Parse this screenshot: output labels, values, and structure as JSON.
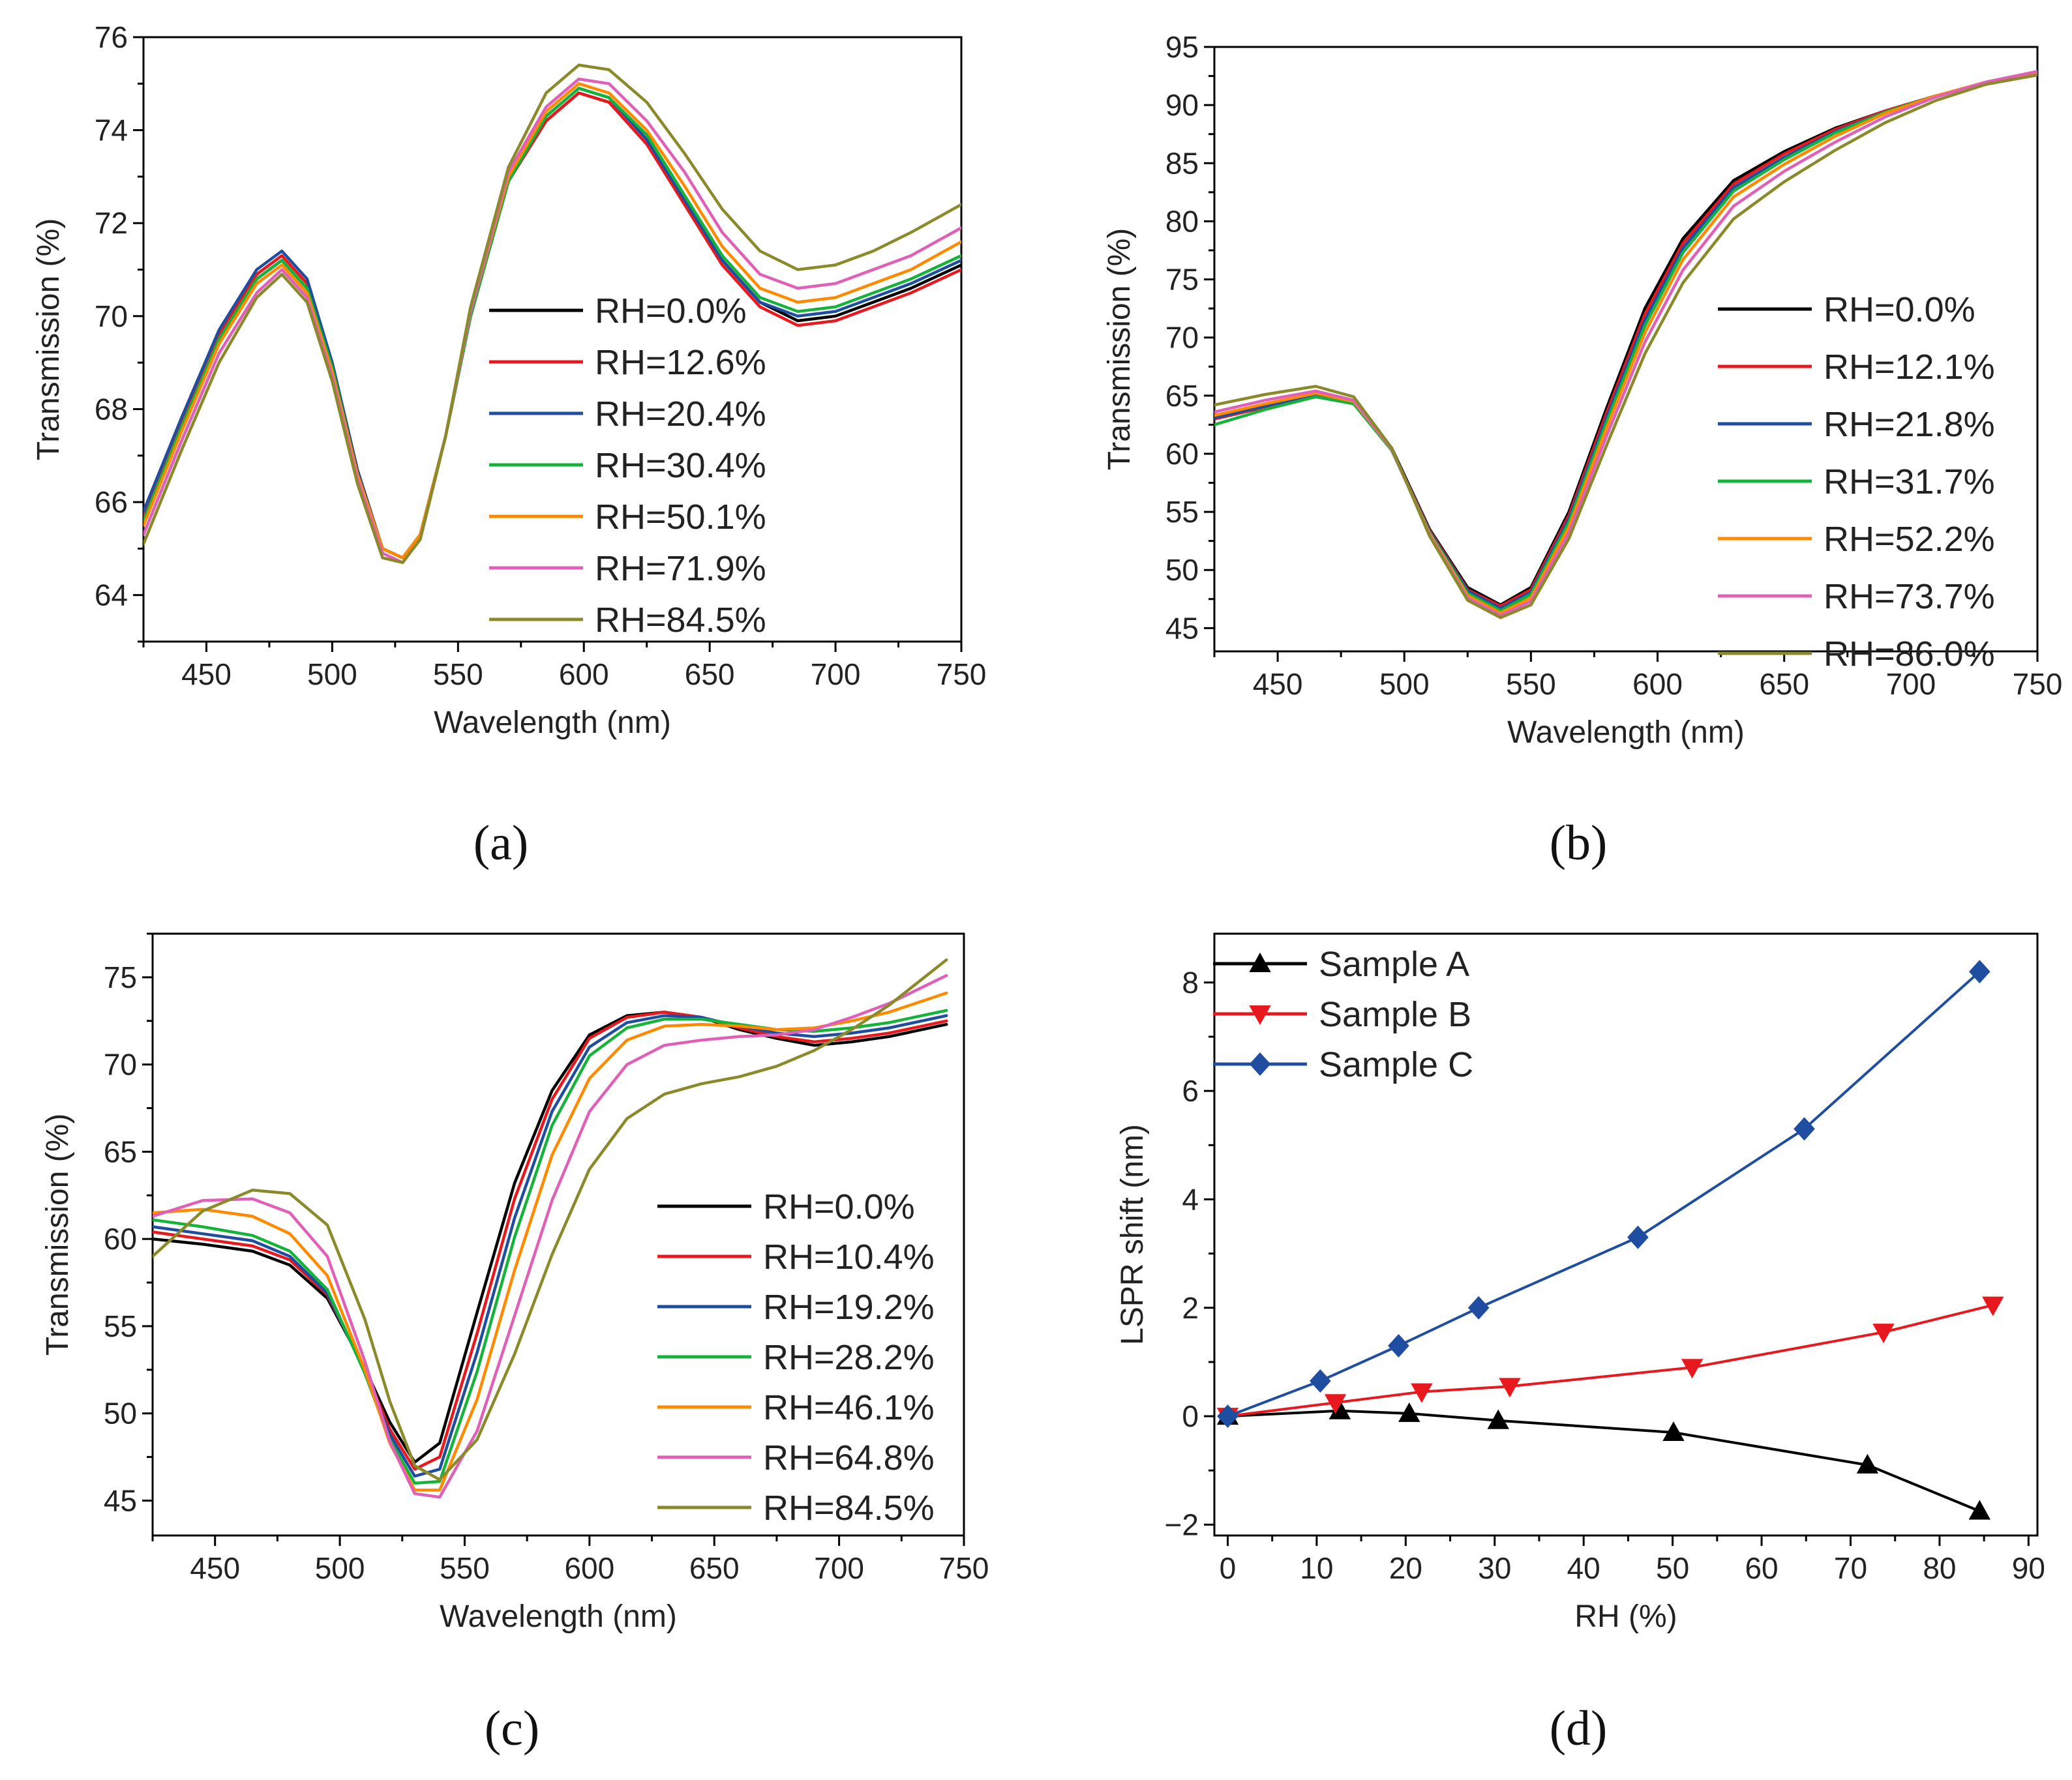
{
  "chart_data": [
    {
      "type": "line",
      "panel": "(a)",
      "xlabel": "Wavelength (nm)",
      "ylabel": "Transmission (%)",
      "xlim": [
        425,
        750
      ],
      "ylim": [
        63,
        76
      ],
      "xticks": [
        450,
        500,
        550,
        600,
        650,
        700,
        750
      ],
      "yticks": [
        64,
        66,
        68,
        70,
        72,
        74,
        76
      ],
      "legend_position": "center-right",
      "x": [
        425,
        440,
        455,
        470,
        480,
        490,
        500,
        510,
        520,
        528,
        535,
        545,
        555,
        570,
        585,
        598,
        610,
        625,
        640,
        655,
        670,
        685,
        700,
        715,
        730,
        750
      ],
      "series": [
        {
          "name": "RH=0.0%",
          "color": "#000000",
          "values": [
            65.6,
            67.6,
            69.5,
            70.8,
            71.2,
            70.6,
            68.9,
            66.6,
            65.0,
            64.8,
            65.3,
            67.4,
            70.0,
            72.9,
            74.2,
            74.8,
            74.6,
            73.7,
            72.5,
            71.2,
            70.3,
            69.9,
            70.0,
            70.3,
            70.6,
            71.1
          ]
        },
        {
          "name": "RH=12.6%",
          "color": "#e8191e",
          "values": [
            65.7,
            67.7,
            69.6,
            70.9,
            71.3,
            70.7,
            69.0,
            66.7,
            65.0,
            64.8,
            65.3,
            67.4,
            70.0,
            72.9,
            74.2,
            74.8,
            74.6,
            73.7,
            72.4,
            71.1,
            70.2,
            69.8,
            69.9,
            70.2,
            70.5,
            71.0
          ]
        },
        {
          "name": "RH=20.4%",
          "color": "#1f4ea1",
          "values": [
            65.8,
            67.8,
            69.7,
            71.0,
            71.4,
            70.8,
            69.0,
            66.7,
            65.0,
            64.8,
            65.3,
            67.4,
            70.0,
            72.9,
            74.3,
            74.9,
            74.7,
            73.8,
            72.5,
            71.2,
            70.3,
            70.0,
            70.1,
            70.4,
            70.7,
            71.2
          ]
        },
        {
          "name": "RH=30.4%",
          "color": "#16b33a",
          "values": [
            65.6,
            67.6,
            69.5,
            70.8,
            71.2,
            70.6,
            68.9,
            66.6,
            65.0,
            64.8,
            65.3,
            67.4,
            70.0,
            72.9,
            74.3,
            74.9,
            74.7,
            73.9,
            72.6,
            71.3,
            70.4,
            70.1,
            70.2,
            70.5,
            70.8,
            71.3
          ]
        },
        {
          "name": "RH=50.1%",
          "color": "#ff8a00",
          "values": [
            65.5,
            67.5,
            69.4,
            70.7,
            71.1,
            70.5,
            68.8,
            66.6,
            65.0,
            64.8,
            65.3,
            67.4,
            70.1,
            73.0,
            74.4,
            75.0,
            74.8,
            74.0,
            72.8,
            71.5,
            70.6,
            70.3,
            70.4,
            70.7,
            71.0,
            71.6
          ]
        },
        {
          "name": "RH=71.9%",
          "color": "#e060b8",
          "values": [
            65.3,
            67.3,
            69.2,
            70.5,
            71.0,
            70.4,
            68.7,
            66.5,
            64.9,
            64.7,
            65.2,
            67.4,
            70.1,
            73.1,
            74.5,
            75.1,
            75.0,
            74.2,
            73.1,
            71.8,
            70.9,
            70.6,
            70.7,
            71.0,
            71.3,
            71.9
          ]
        },
        {
          "name": "RH=84.5%",
          "color": "#8a8a2a",
          "values": [
            65.1,
            67.1,
            69.0,
            70.4,
            70.9,
            70.3,
            68.6,
            66.4,
            64.8,
            64.7,
            65.2,
            67.4,
            70.2,
            73.2,
            74.8,
            75.4,
            75.3,
            74.6,
            73.5,
            72.3,
            71.4,
            71.0,
            71.1,
            71.4,
            71.8,
            72.4
          ]
        }
      ]
    },
    {
      "type": "line",
      "panel": "(b)",
      "xlabel": "Wavelength (nm)",
      "ylabel": "Transmission (%)",
      "xlim": [
        425,
        750
      ],
      "ylim": [
        43,
        95
      ],
      "xticks": [
        450,
        500,
        550,
        600,
        650,
        700,
        750
      ],
      "yticks": [
        45,
        50,
        55,
        60,
        65,
        70,
        75,
        80,
        85,
        90,
        95
      ],
      "legend_position": "center-right",
      "x": [
        425,
        445,
        465,
        480,
        495,
        510,
        525,
        538,
        550,
        565,
        580,
        595,
        610,
        630,
        650,
        670,
        690,
        710,
        730,
        750
      ],
      "series": [
        {
          "name": "RH=0.0%",
          "color": "#000000",
          "values": [
            63.0,
            64.0,
            65.0,
            64.3,
            60.5,
            53.5,
            48.5,
            47.0,
            48.5,
            55.0,
            64.0,
            72.5,
            78.5,
            83.5,
            86.0,
            88.0,
            89.5,
            90.8,
            91.8,
            92.6
          ]
        },
        {
          "name": "RH=12.1%",
          "color": "#e8191e",
          "values": [
            63.0,
            64.0,
            65.0,
            64.3,
            60.4,
            53.4,
            48.3,
            46.9,
            48.3,
            54.7,
            63.6,
            72.0,
            78.1,
            83.2,
            85.8,
            87.9,
            89.5,
            90.8,
            91.8,
            92.6
          ]
        },
        {
          "name": "RH=21.8%",
          "color": "#1f4ea1",
          "values": [
            63.1,
            64.1,
            65.1,
            64.4,
            60.4,
            53.3,
            48.2,
            46.7,
            48.1,
            54.4,
            63.2,
            71.5,
            77.7,
            82.9,
            85.5,
            87.7,
            89.4,
            90.8,
            91.9,
            92.7
          ]
        },
        {
          "name": "RH=31.7%",
          "color": "#16b33a",
          "values": [
            62.5,
            63.8,
            64.9,
            64.3,
            60.3,
            53.2,
            48.0,
            46.5,
            47.9,
            54.1,
            62.8,
            71.0,
            77.3,
            82.6,
            85.3,
            87.6,
            89.4,
            90.8,
            91.9,
            92.7
          ]
        },
        {
          "name": "RH=52.2%",
          "color": "#ff8a00",
          "values": [
            63.3,
            64.3,
            65.2,
            64.5,
            60.4,
            53.1,
            47.8,
            46.3,
            47.6,
            53.7,
            62.3,
            70.4,
            76.7,
            82.1,
            84.9,
            87.3,
            89.3,
            90.8,
            92.0,
            92.8
          ]
        },
        {
          "name": "RH=73.7%",
          "color": "#e060b8",
          "values": [
            63.6,
            64.6,
            65.4,
            64.6,
            60.4,
            53.0,
            47.6,
            46.1,
            47.3,
            53.2,
            61.6,
            69.6,
            75.8,
            81.3,
            84.3,
            86.8,
            89.0,
            90.7,
            92.0,
            92.9
          ]
        },
        {
          "name": "RH=86.0%",
          "color": "#8a8a2a",
          "values": [
            64.2,
            65.1,
            65.8,
            64.9,
            60.5,
            52.9,
            47.4,
            45.9,
            47.0,
            52.7,
            60.8,
            68.6,
            74.7,
            80.2,
            83.4,
            86.1,
            88.5,
            90.4,
            91.8,
            92.6
          ]
        }
      ]
    },
    {
      "type": "line",
      "panel": "(c)",
      "xlabel": "Wavelength (nm)",
      "ylabel": "Transmission (%)",
      "xlim": [
        425,
        750
      ],
      "ylim": [
        43,
        77.5
      ],
      "xticks": [
        450,
        500,
        550,
        600,
        650,
        700,
        750
      ],
      "yticks": [
        45,
        50,
        55,
        60,
        65,
        70,
        75
      ],
      "legend_position": "bottom-right",
      "x": [
        425,
        445,
        465,
        480,
        495,
        510,
        520,
        530,
        540,
        555,
        570,
        585,
        600,
        615,
        630,
        645,
        660,
        675,
        690,
        705,
        720,
        743
      ],
      "series": [
        {
          "name": "RH=0.0%",
          "color": "#000000",
          "values": [
            60.0,
            59.7,
            59.3,
            58.5,
            56.6,
            52.6,
            49.5,
            47.2,
            48.3,
            55.8,
            63.2,
            68.5,
            71.7,
            72.8,
            73.0,
            72.7,
            72.0,
            71.5,
            71.1,
            71.3,
            71.6,
            72.3
          ]
        },
        {
          "name": "RH=10.4%",
          "color": "#e8191e",
          "values": [
            60.4,
            60.0,
            59.6,
            58.8,
            56.8,
            52.5,
            49.1,
            46.8,
            47.5,
            54.6,
            62.3,
            68.0,
            71.5,
            72.7,
            73.0,
            72.7,
            72.1,
            71.6,
            71.3,
            71.5,
            71.8,
            72.5
          ]
        },
        {
          "name": "RH=19.2%",
          "color": "#1f4ea1",
          "values": [
            60.7,
            60.3,
            59.9,
            59.0,
            56.9,
            52.4,
            48.8,
            46.4,
            46.8,
            53.5,
            61.2,
            67.3,
            71.0,
            72.4,
            72.8,
            72.7,
            72.2,
            71.8,
            71.6,
            71.8,
            72.1,
            72.8
          ]
        },
        {
          "name": "RH=28.2%",
          "color": "#16b33a",
          "values": [
            61.1,
            60.7,
            60.2,
            59.3,
            57.1,
            52.3,
            48.5,
            46.0,
            46.1,
            52.4,
            60.1,
            66.5,
            70.5,
            72.1,
            72.6,
            72.6,
            72.3,
            72.0,
            71.9,
            72.1,
            72.4,
            73.1
          ]
        },
        {
          "name": "RH=46.1%",
          "color": "#ff8a00",
          "values": [
            61.5,
            61.7,
            61.3,
            60.3,
            57.9,
            52.5,
            48.3,
            45.6,
            45.6,
            50.8,
            58.2,
            64.8,
            69.2,
            71.4,
            72.2,
            72.3,
            72.2,
            72.0,
            72.1,
            72.5,
            73.0,
            74.1
          ]
        },
        {
          "name": "RH=64.8%",
          "color": "#e060b8",
          "values": [
            61.3,
            62.2,
            62.3,
            61.5,
            59.0,
            53.0,
            48.4,
            45.4,
            45.2,
            49.0,
            55.6,
            62.2,
            67.3,
            70.0,
            71.1,
            71.4,
            71.6,
            71.7,
            72.0,
            72.7,
            73.5,
            75.1
          ]
        },
        {
          "name": "RH=84.5%",
          "color": "#8a8a2a",
          "values": [
            59.0,
            61.6,
            62.8,
            62.6,
            60.8,
            55.4,
            50.7,
            47.0,
            46.2,
            48.5,
            53.4,
            59.1,
            64.0,
            66.9,
            68.3,
            68.9,
            69.3,
            69.9,
            70.8,
            72.0,
            73.4,
            76.0
          ]
        }
      ]
    },
    {
      "type": "line",
      "panel": "(d)",
      "xlabel": "RH (%)",
      "ylabel": "LSPR shift (nm)",
      "xlim": [
        -1.5,
        91
      ],
      "ylim": [
        -2.2,
        8.9
      ],
      "xticks": [
        0,
        10,
        20,
        30,
        40,
        50,
        60,
        70,
        80,
        90
      ],
      "yticks": [
        -2,
        0,
        2,
        4,
        6,
        8
      ],
      "legend_position": "top-left",
      "series": [
        {
          "name": "Sample A",
          "color": "#000000",
          "marker": "triangle-up",
          "x": [
            0.0,
            12.6,
            20.4,
            30.4,
            50.1,
            71.9,
            84.5
          ],
          "values": [
            0.0,
            0.1,
            0.05,
            -0.08,
            -0.3,
            -0.9,
            -1.75
          ]
        },
        {
          "name": "Sample B",
          "color": "#e8191e",
          "marker": "triangle-down",
          "x": [
            0.0,
            12.1,
            21.8,
            31.7,
            52.2,
            73.7,
            86.0
          ],
          "values": [
            0.0,
            0.25,
            0.45,
            0.55,
            0.9,
            1.55,
            2.05
          ]
        },
        {
          "name": "Sample C",
          "color": "#1f4ea1",
          "marker": "diamond",
          "x": [
            0.0,
            10.4,
            19.2,
            28.2,
            46.1,
            64.8,
            84.5
          ],
          "values": [
            0.0,
            0.65,
            1.3,
            2.0,
            3.3,
            5.3,
            8.2
          ]
        }
      ]
    }
  ]
}
